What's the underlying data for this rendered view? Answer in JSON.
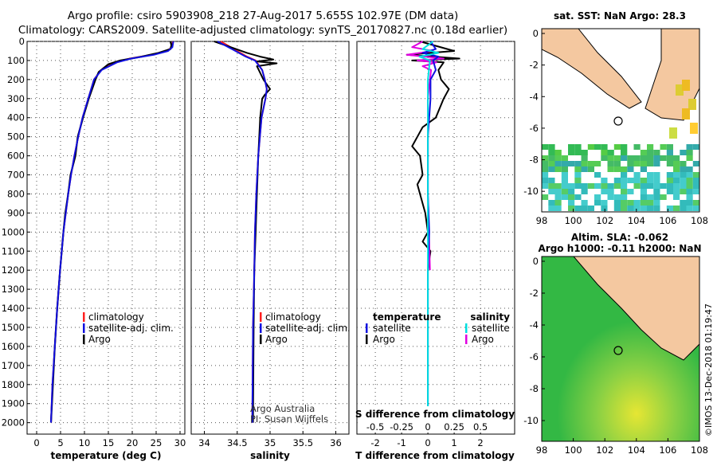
{
  "header": {
    "line1": "Argo profile: csiro 5903908_218 27-Aug-2017 5.655S 102.97E (DM data)",
    "line2": "Climatology: CARS2009. Satellite-adjusted climatology: synTS_20170827.nc (0.18d earlier)"
  },
  "colors": {
    "climatology": "#ff2020",
    "satellite": "#1010e0",
    "argo": "#000000",
    "satellite_salinity": "#00e0e0",
    "argo_salinity": "#e000e0",
    "land": "#f4c8a0"
  },
  "chart_data": [
    {
      "id": "temperature",
      "type": "line",
      "xlabel": "temperature (deg C)",
      "xlim": [
        -2,
        31
      ],
      "ylim": [
        0,
        2060
      ],
      "xticks": [
        0,
        5,
        10,
        15,
        20,
        25,
        30
      ],
      "yticks": [
        0,
        100,
        200,
        300,
        400,
        500,
        600,
        700,
        800,
        900,
        1000,
        1100,
        1200,
        1300,
        1400,
        1500,
        1600,
        1700,
        1800,
        1900,
        2000
      ],
      "legend": [
        "climatology",
        "satellite-adj. clim.",
        "Argo"
      ],
      "series": [
        {
          "name": "climatology",
          "pressure": [
            0,
            30,
            50,
            70,
            90,
            110,
            150,
            200,
            300,
            400,
            500,
            600,
            700,
            800,
            900,
            1000,
            1200,
            1400,
            1600,
            1800,
            2000
          ],
          "values": [
            28.5,
            28.3,
            27.3,
            24.0,
            19.5,
            16.5,
            13.5,
            12.0,
            10.8,
            9.6,
            8.7,
            7.9,
            7.2,
            6.6,
            6.1,
            5.6,
            4.9,
            4.3,
            3.8,
            3.3,
            3.0
          ]
        },
        {
          "name": "satellite-adj. clim.",
          "pressure": [
            0,
            30,
            50,
            70,
            90,
            110,
            150,
            200,
            300,
            400,
            500,
            600,
            700,
            800,
            900,
            1000,
            1200,
            1400,
            1600,
            1800,
            2000
          ],
          "values": [
            28.6,
            28.4,
            27.5,
            24.5,
            19.8,
            16.8,
            13.6,
            12.0,
            10.8,
            9.6,
            8.7,
            7.9,
            7.2,
            6.6,
            6.1,
            5.6,
            4.9,
            4.3,
            3.8,
            3.3,
            3.0
          ]
        },
        {
          "name": "Argo",
          "pressure": [
            0,
            20,
            40,
            60,
            80,
            100,
            120,
            160,
            200,
            300,
            400,
            500,
            600,
            700,
            800,
            900,
            1000,
            1200,
            1400,
            1600,
            1800,
            2000
          ],
          "values": [
            28.0,
            28.2,
            28.0,
            25.5,
            22.0,
            17.5,
            15.0,
            13.0,
            12.3,
            10.9,
            9.7,
            8.6,
            8.1,
            7.1,
            6.6,
            6.0,
            5.6,
            4.9,
            4.3,
            3.8,
            3.4,
            3.0
          ]
        }
      ]
    },
    {
      "id": "salinity",
      "type": "line",
      "xlabel": "salinity",
      "xlim": [
        33.8,
        36.2
      ],
      "ylim": [
        0,
        2060
      ],
      "xticks": [
        34,
        34.5,
        35,
        35.5,
        36
      ],
      "legend": [
        "climatology",
        "satellite-adj. clim.",
        "Argo"
      ],
      "series": [
        {
          "name": "climatology",
          "pressure": [
            0,
            40,
            80,
            100,
            150,
            200,
            250,
            300,
            400,
            600,
            800,
            1000,
            1200,
            1500,
            2000
          ],
          "values": [
            34.25,
            34.45,
            34.65,
            34.78,
            34.88,
            34.92,
            34.95,
            34.93,
            34.87,
            34.82,
            34.79,
            34.77,
            34.76,
            34.74,
            34.73
          ]
        },
        {
          "name": "satellite-adj. clim.",
          "pressure": [
            0,
            40,
            80,
            100,
            150,
            200,
            250,
            300,
            400,
            600,
            800,
            1000,
            1200,
            1500,
            2000
          ],
          "values": [
            34.2,
            34.42,
            34.63,
            34.77,
            34.88,
            34.92,
            34.95,
            34.93,
            34.87,
            34.82,
            34.79,
            34.77,
            34.76,
            34.74,
            34.73
          ]
        },
        {
          "name": "Argo",
          "pressure": [
            0,
            30,
            60,
            80,
            95,
            105,
            115,
            130,
            200,
            250,
            280,
            300,
            400,
            600,
            800,
            1000,
            1200,
            1500,
            2000
          ],
          "values": [
            34.15,
            34.4,
            34.65,
            34.85,
            35.05,
            34.8,
            35.1,
            34.8,
            34.9,
            35.0,
            34.92,
            34.88,
            34.85,
            34.82,
            34.8,
            34.78,
            34.76,
            34.75,
            34.74
          ]
        }
      ],
      "annotation": [
        "Argo Australia",
        "PI: Susan Wijffels"
      ]
    },
    {
      "id": "difference",
      "type": "line",
      "xlabel": "T difference from climatology",
      "secondary_xlabel": "S difference from climatology",
      "xlim": [
        -2.7,
        3.3
      ],
      "ylim": [
        0,
        2060
      ],
      "xticks": [
        -2,
        -1,
        0,
        1,
        2
      ],
      "s_ticks": [
        "-0.5",
        "-0.25",
        "0",
        "0.25",
        "0.5"
      ],
      "legend": {
        "temperature_title": "temperature",
        "salinity_title": "salinity",
        "items_left": [
          "satellite",
          "Argo"
        ],
        "items_right": [
          "satellite",
          "Argo"
        ]
      },
      "series": [
        {
          "name": "T satellite",
          "pressure": [
            0,
            40,
            60,
            80,
            100,
            150,
            200,
            300,
            500,
            800,
            1000,
            1200,
            1500,
            2000
          ],
          "values": [
            0.1,
            0.3,
            -0.2,
            0.4,
            0.2,
            0.3,
            0.1,
            0.1,
            0.0,
            0.0,
            0.05,
            0.0,
            0.0,
            0.0
          ]
        },
        {
          "name": "T Argo",
          "pressure": [
            0,
            50,
            70,
            90,
            100,
            110,
            150,
            200,
            250,
            300,
            400,
            450,
            500,
            550,
            600,
            700,
            750,
            800,
            900,
            1000,
            1050,
            1100,
            1200
          ],
          "values": [
            -0.3,
            1.0,
            -0.8,
            1.2,
            -0.6,
            0.6,
            0.4,
            0.5,
            0.8,
            0.6,
            0.3,
            -0.2,
            -0.4,
            -0.6,
            -0.3,
            -0.2,
            -0.4,
            -0.3,
            -0.1,
            0.0,
            -0.2,
            0.1,
            0.0
          ]
        },
        {
          "name": "S satellite",
          "pressure": [
            0,
            40,
            60,
            80,
            100,
            150,
            200,
            300,
            500,
            800,
            1000,
            1200,
            1500,
            2000
          ],
          "values": [
            0.05,
            -0.05,
            0.1,
            -0.08,
            0.02,
            0.01,
            0.0,
            0.0,
            0.0,
            0.0,
            0.0,
            0.0,
            0.0,
            0.0
          ]
        },
        {
          "name": "S Argo",
          "pressure": [
            0,
            30,
            50,
            70,
            90,
            100,
            110,
            130,
            150,
            200,
            300,
            500,
            800,
            1000,
            1200
          ],
          "values": [
            -0.05,
            -0.15,
            0.05,
            -0.2,
            0.15,
            -0.1,
            0.08,
            -0.05,
            0.03,
            0.02,
            0.0,
            0.0,
            0.0,
            0.01,
            0.02
          ]
        }
      ]
    }
  ],
  "maps": {
    "sst": {
      "title": "sat. SST: NaN Argo: 28.3",
      "xticks": [
        "98",
        "100",
        "102",
        "104",
        "106",
        "108"
      ],
      "yticks": [
        "0",
        "-2",
        "-4",
        "-6",
        "-8",
        "-10"
      ]
    },
    "sla": {
      "title1": "Altim. SLA: -0.062",
      "title2": "Argo h1000: -0.11 h2000: NaN",
      "xticks": [
        "98",
        "100",
        "102",
        "104",
        "106",
        "108"
      ],
      "yticks": [
        "0",
        "-2",
        "-4",
        "-6",
        "-8",
        "-10"
      ]
    }
  },
  "footer": {
    "credit": "©IMOS 13-Dec-2018 01:19:47"
  }
}
